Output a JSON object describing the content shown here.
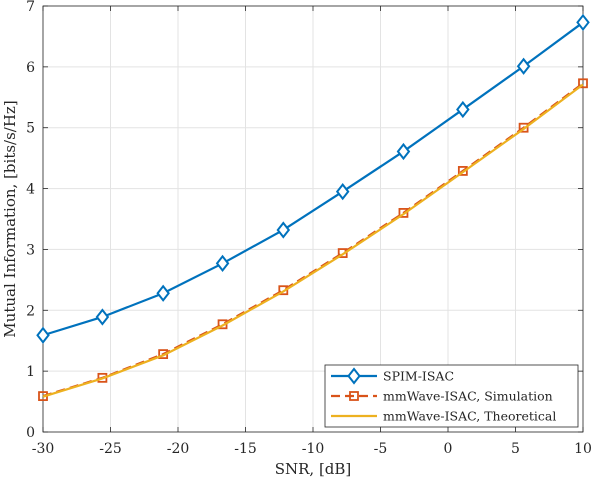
{
  "chart_data": {
    "type": "line",
    "xlabel": "SNR, [dB]",
    "ylabel": "Mutual Information, [bits/s/Hz]",
    "xlim": [
      -30,
      10
    ],
    "ylim": [
      0,
      7
    ],
    "xticks": [
      "-30",
      "-25",
      "-20",
      "-15",
      "-10",
      "-5",
      "0",
      "5",
      "10"
    ],
    "yticks": [
      "0",
      "1",
      "2",
      "3",
      "4",
      "5",
      "6",
      "7"
    ],
    "grid": true,
    "legend_position": "bottom-right",
    "series": [
      {
        "name": "SPIM-ISAC",
        "color": "#0072BD",
        "line": "solid",
        "marker": "diamond",
        "x": [
          -30,
          -25.6,
          -21.1,
          -16.7,
          -12.2,
          -7.8,
          -3.3,
          1.1,
          5.6,
          10
        ],
        "y": [
          1.59,
          1.89,
          2.28,
          2.77,
          3.32,
          3.95,
          4.61,
          5.3,
          6.01,
          6.73
        ]
      },
      {
        "name": "mmWave-ISAC, Simulation",
        "color": "#D95319",
        "line": "dashed",
        "marker": "square",
        "x": [
          -30,
          -25.6,
          -21.1,
          -16.7,
          -12.2,
          -7.8,
          -3.3,
          1.1,
          5.6,
          10
        ],
        "y": [
          0.59,
          0.89,
          1.28,
          1.77,
          2.33,
          2.94,
          3.6,
          4.29,
          5.0,
          5.73
        ]
      },
      {
        "name": "mmWave-ISAC, Theoretical",
        "color": "#EDB120",
        "line": "solid",
        "marker": "none",
        "x": [
          -30,
          -25.6,
          -21.1,
          -16.7,
          -12.2,
          -7.8,
          -3.3,
          1.1,
          5.6,
          10
        ],
        "y": [
          0.58,
          0.88,
          1.26,
          1.75,
          2.31,
          2.92,
          3.58,
          4.27,
          4.98,
          5.71
        ]
      }
    ]
  }
}
